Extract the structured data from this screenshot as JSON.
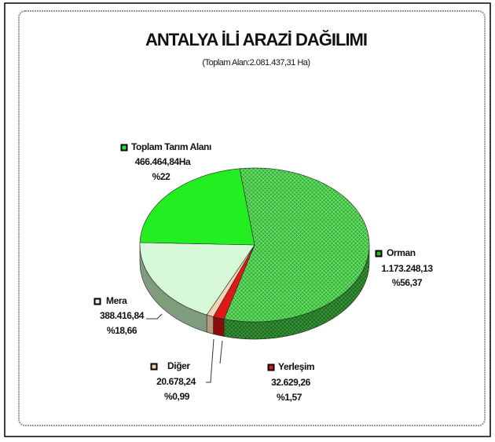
{
  "chart_data": {
    "type": "pie",
    "title": "ANTALYA İLİ ARAZİ DAĞILIMI",
    "subtitle": "(Toplam Alan:2.081.437,31 Ha)",
    "categories": [
      "Orman",
      "Yerleşim",
      "Diğer",
      "Mera",
      "Toplam Tarım Alanı"
    ],
    "values": [
      1173248.13,
      32629.26,
      20678.24,
      388416.84,
      466464.84
    ],
    "value_labels": [
      "1.173.248,13",
      "32.629,26",
      "20.678,24",
      "388.416,84",
      "466.464,84Ha"
    ],
    "percents": [
      56.37,
      1.57,
      0.99,
      18.66,
      22
    ],
    "percent_labels": [
      "%56,37",
      "%1,57",
      "%0,99",
      "%18,66",
      "%22"
    ],
    "colors": [
      "#2fb52f",
      "#e01818",
      "#f3d3b3",
      "#d6f8d6",
      "#22ee22"
    ]
  }
}
